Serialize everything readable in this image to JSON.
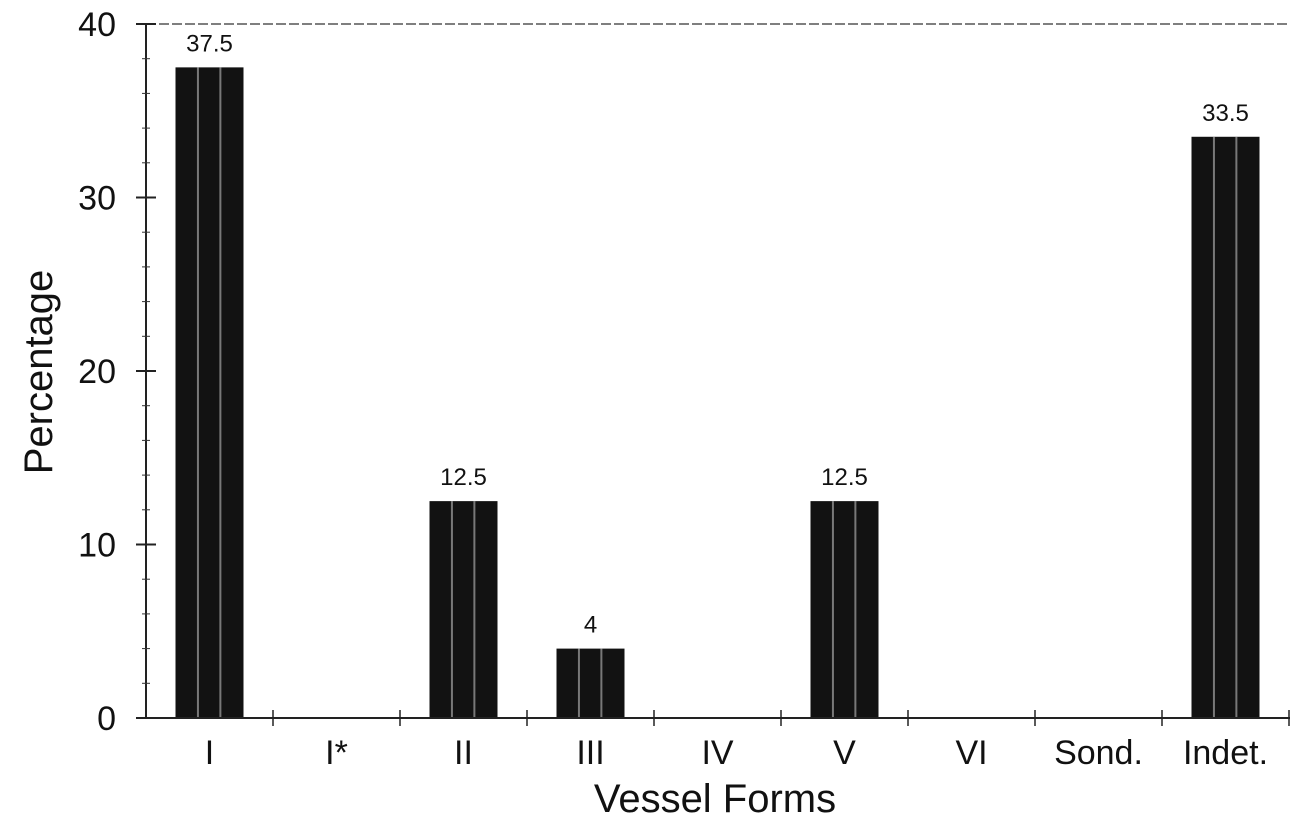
{
  "chart_data": {
    "type": "bar",
    "title": "",
    "xlabel": "Vessel Forms",
    "ylabel": "Percentage",
    "categories": [
      "I",
      "I*",
      "II",
      "III",
      "IV",
      "V",
      "VI",
      "Sond.",
      "Indet."
    ],
    "values": [
      37.5,
      0,
      12.5,
      4,
      0,
      12.5,
      0,
      0,
      33.5
    ],
    "data_labels": [
      "37.5",
      "",
      "12.5",
      "4",
      "",
      "12.5",
      "",
      "",
      "33.5"
    ],
    "ylim": [
      0,
      40
    ],
    "yticks": [
      0,
      10,
      20,
      30,
      40
    ],
    "grid": false,
    "legend": "none",
    "bar_color": "#121212"
  }
}
